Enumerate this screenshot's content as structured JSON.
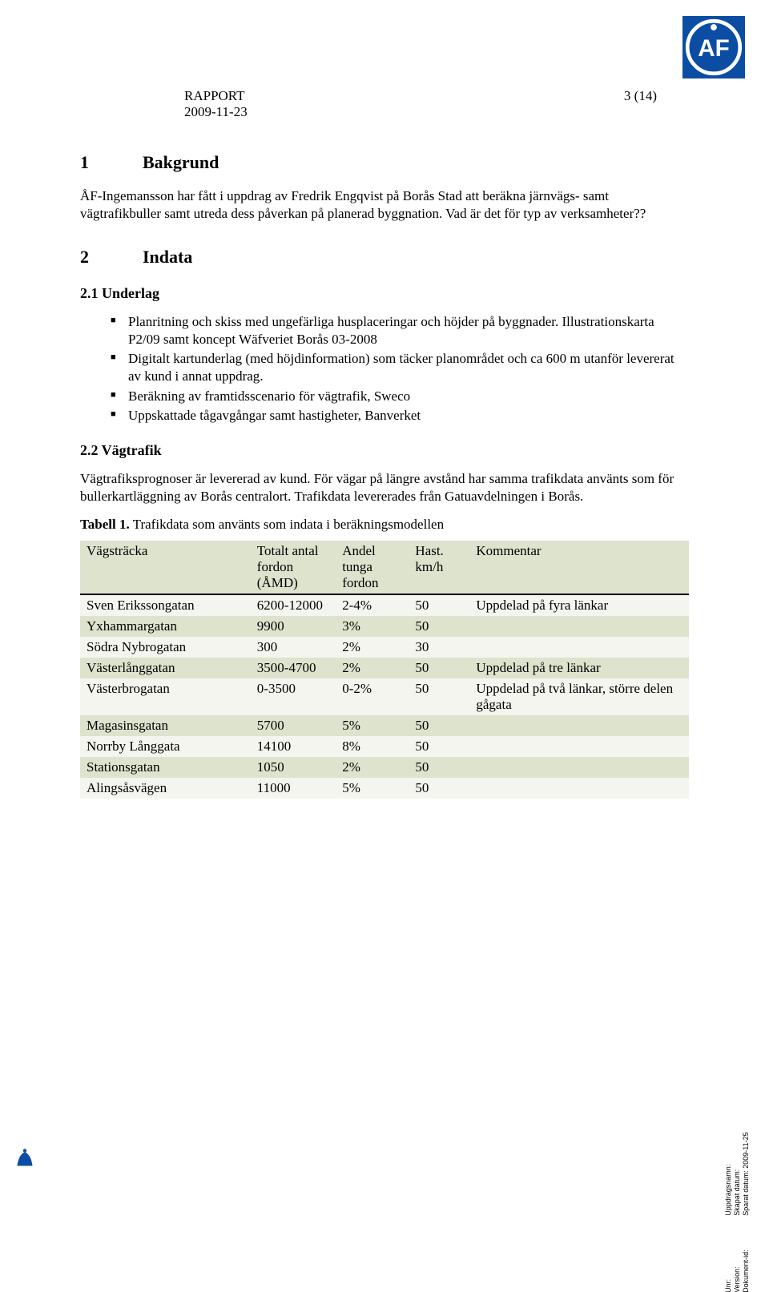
{
  "header": {
    "title": "RAPPORT",
    "date": "2009-11-23",
    "page": "3 (14)"
  },
  "logo": {
    "bg_color": "#0b4da2",
    "fg_color": "#ffffff",
    "letters": "ÅF"
  },
  "section_1": {
    "num": "1",
    "title": "Bakgrund",
    "para": "ÅF-Ingemansson har fått i uppdrag av Fredrik Engqvist på Borås Stad att beräkna järnvägs- samt vägtrafikbuller samt utreda dess påverkan på planerad byggnation. Vad är det för typ av verksamheter??"
  },
  "section_2": {
    "num": "2",
    "title": "Indata",
    "sub_2_1": {
      "title": "2.1 Underlag",
      "bullets": [
        "Planritning och skiss med ungefärliga husplaceringar och höjder på byggnader. Illustrationskarta P2/09 samt koncept Wäfveriet Borås 03-2008",
        "Digitalt kartunderlag (med höjdinformation) som täcker planområdet och ca 600 m utanför levererat av kund i annat uppdrag.",
        "Beräkning av framtidsscenario för vägtrafik, Sweco",
        "Uppskattade tågavgångar samt hastigheter, Banverket"
      ]
    },
    "sub_2_2": {
      "title": "2.2 Vägtrafik",
      "para": "Vägtrafiksprognoser är levererad av kund. För vägar på längre avstånd har samma trafikdata använts som för bullerkartläggning av Borås centralort. Trafikdata levererades från Gatuavdelningen i Borås.",
      "table_caption": "Tabell 1. Trafikdata som använts som indata i beräkningsmodellen"
    }
  },
  "table": {
    "columns": [
      "Vägsträcka",
      "Totalt antal fordon (ÅMD)",
      "Andel tunga fordon",
      "Hast. km/h",
      "Kommentar"
    ],
    "col_widths": [
      "28%",
      "14%",
      "12%",
      "10%",
      "36%"
    ],
    "header_bg": "#dde3cd",
    "row_bg_odd": "#f4f5ef",
    "row_bg_even": "#dde3cd",
    "border_color": "#000000",
    "rows": [
      [
        "Sven Erikssongatan",
        "6200-12000",
        "2-4%",
        "50",
        "Uppdelad på fyra länkar"
      ],
      [
        "Yxhammargatan",
        "9900",
        "3%",
        "50",
        ""
      ],
      [
        "Södra Nybrogatan",
        "300",
        "2%",
        "30",
        ""
      ],
      [
        "Västerlånggatan",
        "3500-4700",
        "2%",
        "50",
        "Uppdelad på tre länkar"
      ],
      [
        "Västerbrogatan",
        "0-3500",
        "0-2%",
        "50",
        "Uppdelad på två länkar, större delen gågata"
      ],
      [
        "Magasinsgatan",
        "5700",
        "5%",
        "50",
        ""
      ],
      [
        "Norrby Långgata",
        "14100",
        "8%",
        "50",
        ""
      ],
      [
        "Stationsgatan",
        "1050",
        "2%",
        "50",
        ""
      ],
      [
        "Alingsåsvägen",
        "11000",
        "5%",
        "50",
        ""
      ]
    ]
  },
  "sidemeta": {
    "block1": [
      "Unr:",
      "Version:",
      "Dokument-id:"
    ],
    "block2": [
      "Uppdragsnamn:",
      "Skapat datum:",
      "Sparat datum: 2009-11-25"
    ]
  }
}
